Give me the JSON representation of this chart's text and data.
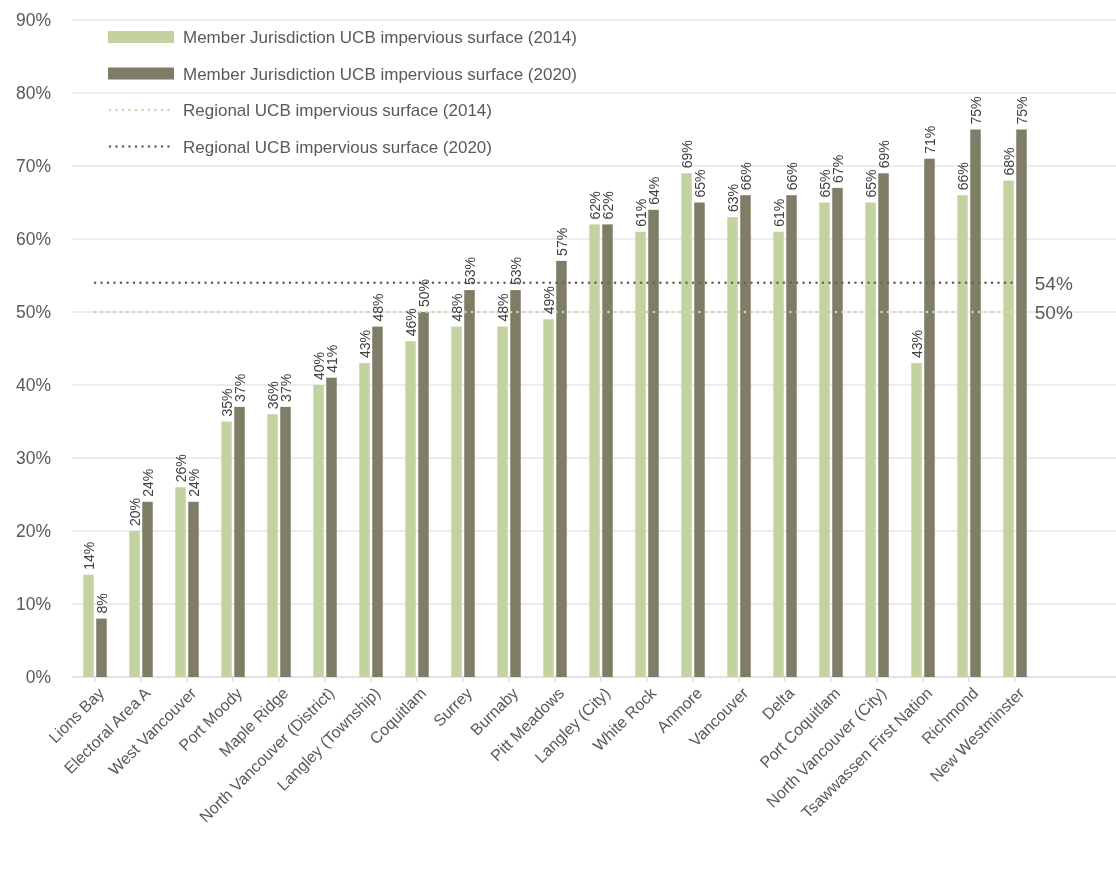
{
  "chart_data": {
    "type": "bar",
    "categories": [
      "Lions Bay",
      "Electoral Area A",
      "West Vancouver",
      "Port Moody",
      "Maple Ridge",
      "North Vancouver (District)",
      "Langley (Township)",
      "Coquitlam",
      "Surrey",
      "Burnaby",
      "Pitt Meadows",
      "Langley (City)",
      "White Rock",
      "Anmore",
      "Vancouver",
      "Delta",
      "Port Coquitlam",
      "North Vancouver (City)",
      "Tsawwassen First Nation",
      "Richmond",
      "New Westminster"
    ],
    "ylim": [
      0,
      90
    ],
    "yticks": [
      {
        "value": 0,
        "label": "0%"
      },
      {
        "value": 10,
        "label": "10%"
      },
      {
        "value": 20,
        "label": "20%"
      },
      {
        "value": 30,
        "label": "30%"
      },
      {
        "value": 40,
        "label": "40%"
      },
      {
        "value": 50,
        "label": "50%"
      },
      {
        "value": 60,
        "label": "60%"
      },
      {
        "value": 70,
        "label": "70%"
      },
      {
        "value": 80,
        "label": "80%"
      },
      {
        "value": 90,
        "label": "90%"
      }
    ],
    "grid": "y",
    "legend": "top left",
    "series": [
      {
        "name": "Member Jurisdiction UCB impervious surface (2014)",
        "color": "#c3d39f",
        "values": [
          14,
          20,
          26,
          35,
          36,
          40,
          43,
          46,
          48,
          48,
          49,
          62,
          61,
          69,
          63,
          61,
          65,
          65,
          43,
          66,
          68
        ],
        "value_labels": [
          "14%",
          "20%",
          "26%",
          "35%",
          "36%",
          "40%",
          "43%",
          "46%",
          "48%",
          "48%",
          "49%",
          "62%",
          "61%",
          "69%",
          "63%",
          "61%",
          "65%",
          "65%",
          "43%",
          "66%",
          "68%"
        ]
      },
      {
        "name": "Member Jurisdiction UCB impervious surface (2020)",
        "color": "#7f7d67",
        "values": [
          8,
          24,
          24,
          37,
          37,
          41,
          48,
          50,
          53,
          53,
          57,
          62,
          64,
          65,
          66,
          66,
          67,
          69,
          71,
          75,
          75
        ],
        "value_labels": [
          "8%",
          "24%",
          "24%",
          "37%",
          "37%",
          "41%",
          "48%",
          "50%",
          "53%",
          "53%",
          "57%",
          "62%",
          "64%",
          "65%",
          "66%",
          "66%",
          "67%",
          "69%",
          "71%",
          "75%",
          "75%"
        ]
      },
      {
        "type": "line",
        "name": "Regional UCB impervious surface (2014)",
        "color": "#cbd7a9",
        "line_style": "dotted",
        "values": [
          50,
          50,
          50,
          50,
          50,
          50,
          50,
          50,
          50,
          50,
          50,
          50,
          50,
          50,
          50,
          50,
          50,
          50,
          50,
          50,
          50
        ],
        "value_labels": [
          null,
          null,
          null,
          null,
          null,
          null,
          null,
          null,
          null,
          null,
          null,
          null,
          null,
          null,
          null,
          null,
          null,
          null,
          null,
          null,
          "50%"
        ]
      },
      {
        "type": "line",
        "name": "Regional UCB impervious surface (2020)",
        "color": "#66664f",
        "line_style": "dotted",
        "values": [
          54,
          54,
          54,
          54,
          54,
          54,
          54,
          54,
          54,
          54,
          54,
          54,
          54,
          54,
          54,
          54,
          54,
          54,
          54,
          54,
          54
        ],
        "value_labels": [
          null,
          null,
          null,
          null,
          null,
          null,
          null,
          null,
          null,
          null,
          null,
          null,
          null,
          null,
          null,
          null,
          null,
          null,
          null,
          null,
          "54%"
        ]
      }
    ]
  }
}
